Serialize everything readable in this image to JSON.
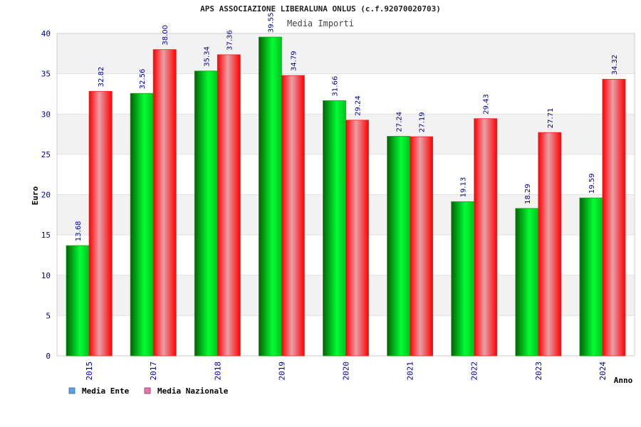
{
  "chart_data": {
    "type": "bar",
    "title": "APS ASSOCIAZIONE LIBERALUNA ONLUS (c.f.92070020703)",
    "subtitle": "Media Importi",
    "xlabel": "Anno",
    "ylabel": "Euro",
    "ylim": [
      0,
      40
    ],
    "yticks": [
      0,
      5,
      10,
      15,
      20,
      25,
      30,
      35,
      40
    ],
    "grid": true,
    "legend_position": "bottom-left",
    "categories": [
      "2015",
      "2017",
      "2018",
      "2019",
      "2020",
      "2021",
      "2022",
      "2023",
      "2024"
    ],
    "series": [
      {
        "name": "Media Ente",
        "values": [
          13.68,
          32.56,
          35.34,
          39.55,
          31.66,
          27.24,
          19.13,
          18.29,
          19.59
        ],
        "labels": [
          "13.68",
          "32.56",
          "35.34",
          "39.55",
          "31.66",
          "27.24",
          "19.13",
          "18.29",
          "19.59"
        ]
      },
      {
        "name": "Media Nazionale",
        "values": [
          32.82,
          38.0,
          37.36,
          34.79,
          29.24,
          27.19,
          29.43,
          27.71,
          34.32
        ],
        "labels": [
          "32.82",
          "38.00",
          "37.36",
          "34.79",
          "29.24",
          "27.19",
          "29.43",
          "27.71",
          "34.32"
        ]
      }
    ],
    "colors": {
      "ente_dark": "#006400",
      "ente_light": "#00ff33",
      "naz_dark": "#ff0000",
      "naz_light": "#e8a0a8",
      "legend_ente": "#5aa0e6",
      "legend_naz": "#e07aa8",
      "axis_text": "#000099",
      "band": "#f2f2f2"
    }
  }
}
